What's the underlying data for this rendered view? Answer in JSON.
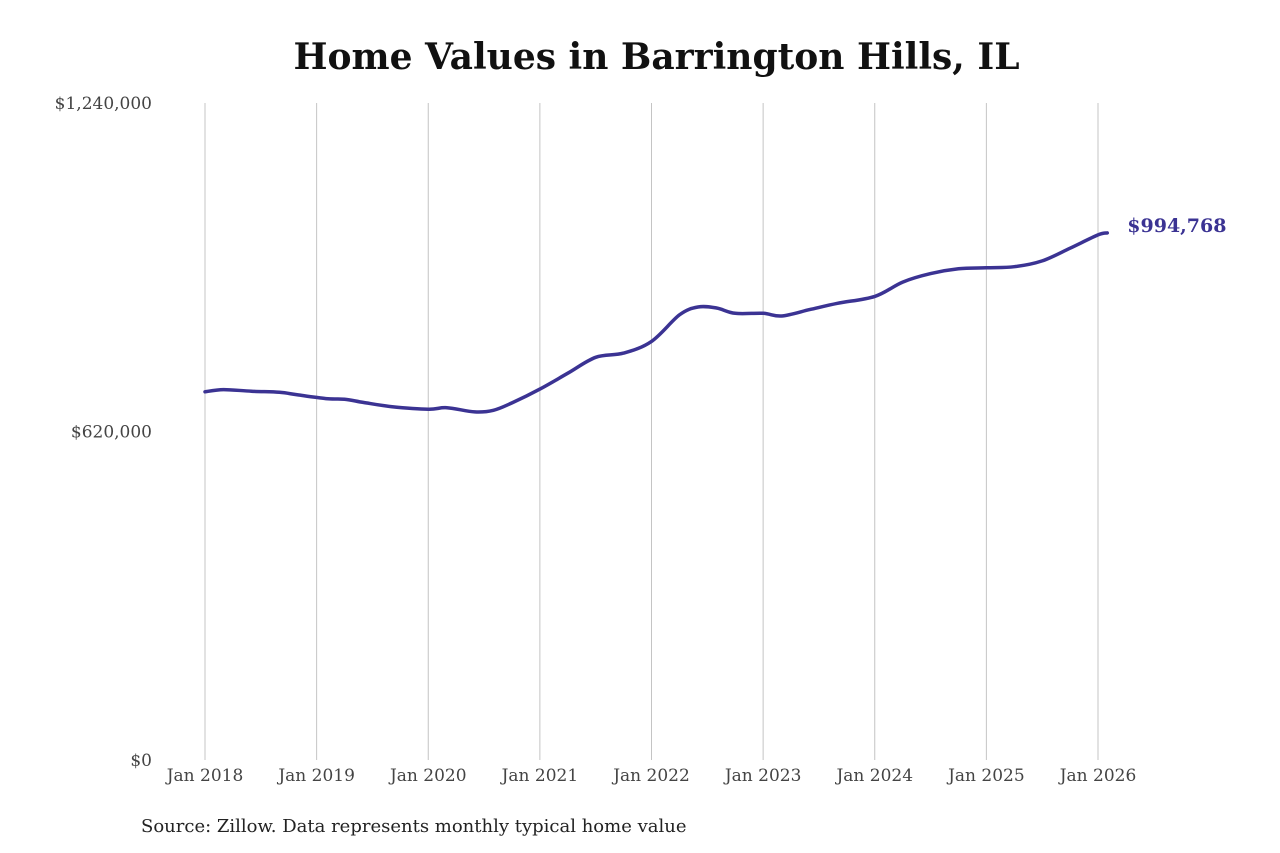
{
  "chart_data": {
    "type": "line",
    "title": "Home Values in Barrington Hills, IL",
    "source": "Source: Zillow. Data represents monthly typical home value",
    "xlabel": "",
    "ylabel": "",
    "ylim": [
      0,
      1240000
    ],
    "yticks": [
      {
        "value": 0,
        "label": "$0"
      },
      {
        "value": 620000,
        "label": "$620,000"
      },
      {
        "value": 1240000,
        "label": "$1,240,000"
      }
    ],
    "xlim": [
      "2018-01",
      "2026-01"
    ],
    "xticks": [
      {
        "value": "2018-01",
        "label": "Jan 2018"
      },
      {
        "value": "2019-01",
        "label": "Jan 2019"
      },
      {
        "value": "2020-01",
        "label": "Jan 2020"
      },
      {
        "value": "2021-01",
        "label": "Jan 2021"
      },
      {
        "value": "2022-01",
        "label": "Jan 2022"
      },
      {
        "value": "2023-01",
        "label": "Jan 2023"
      },
      {
        "value": "2024-01",
        "label": "Jan 2024"
      },
      {
        "value": "2025-01",
        "label": "Jan 2025"
      },
      {
        "value": "2026-01",
        "label": "Jan 2026"
      }
    ],
    "grid": "vertical",
    "line_color": "#3b3393",
    "series": [
      {
        "end_label": "$994,768",
        "points": [
          {
            "x": "2018-01",
            "y": 695000
          },
          {
            "x": "2018-03",
            "y": 699000
          },
          {
            "x": "2018-06",
            "y": 696000
          },
          {
            "x": "2018-09",
            "y": 694000
          },
          {
            "x": "2018-11",
            "y": 689000
          },
          {
            "x": "2019-02",
            "y": 682000
          },
          {
            "x": "2019-04",
            "y": 681000
          },
          {
            "x": "2019-06",
            "y": 675000
          },
          {
            "x": "2019-09",
            "y": 667000
          },
          {
            "x": "2020-01",
            "y": 662000
          },
          {
            "x": "2020-03",
            "y": 665000
          },
          {
            "x": "2020-06",
            "y": 657000
          },
          {
            "x": "2020-08",
            "y": 660000
          },
          {
            "x": "2020-10",
            "y": 674000
          },
          {
            "x": "2021-01",
            "y": 700000
          },
          {
            "x": "2021-04",
            "y": 730000
          },
          {
            "x": "2021-07",
            "y": 760000
          },
          {
            "x": "2021-10",
            "y": 768000
          },
          {
            "x": "2022-01",
            "y": 790000
          },
          {
            "x": "2022-04",
            "y": 840000
          },
          {
            "x": "2022-06",
            "y": 855000
          },
          {
            "x": "2022-08",
            "y": 853000
          },
          {
            "x": "2022-10",
            "y": 843000
          },
          {
            "x": "2023-01",
            "y": 843000
          },
          {
            "x": "2023-03",
            "y": 838000
          },
          {
            "x": "2023-06",
            "y": 850000
          },
          {
            "x": "2023-09",
            "y": 862000
          },
          {
            "x": "2024-01",
            "y": 875000
          },
          {
            "x": "2024-04",
            "y": 902000
          },
          {
            "x": "2024-07",
            "y": 918000
          },
          {
            "x": "2024-10",
            "y": 927000
          },
          {
            "x": "2025-01",
            "y": 929000
          },
          {
            "x": "2025-04",
            "y": 931000
          },
          {
            "x": "2025-07",
            "y": 942000
          },
          {
            "x": "2025-10",
            "y": 966000
          },
          {
            "x": "2026-01",
            "y": 991000
          },
          {
            "x": "2026-02",
            "y": 994768
          }
        ]
      }
    ]
  }
}
